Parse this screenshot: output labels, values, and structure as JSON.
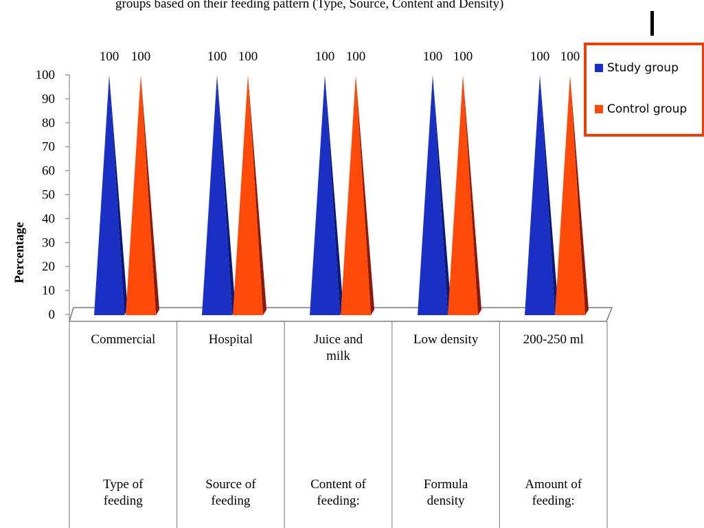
{
  "top_text": "groups based on their feeding pattern (Type, Source, Content and Density)",
  "chart_data": {
    "type": "bar",
    "ylabel": "Percentage",
    "ylim": [
      0,
      100
    ],
    "yticks": [
      0,
      10,
      20,
      30,
      40,
      50,
      60,
      70,
      80,
      90,
      100
    ],
    "categories": [
      "Commercial",
      "Hospital",
      "Juice and milk",
      "Low density",
      "200-250 ml"
    ],
    "category_lines": [
      [
        "Commercial"
      ],
      [
        "Hospital"
      ],
      [
        "Juice and",
        "milk"
      ],
      [
        "Low density"
      ],
      [
        "200-250 ml"
      ]
    ],
    "groups": [
      [
        "Type of",
        "feeding"
      ],
      [
        "Source of",
        "feeding"
      ],
      [
        "Content of",
        "feeding:"
      ],
      [
        "Formula",
        "density"
      ],
      [
        "Amount of",
        "feeding:"
      ]
    ],
    "series": [
      {
        "name": "Study group",
        "values": [
          100,
          100,
          100,
          100,
          100
        ],
        "color": "#1a2fc4",
        "shade": "#0b1a7a"
      },
      {
        "name": "Control group",
        "values": [
          100,
          100,
          100,
          100,
          100
        ],
        "color": "#ff4a0a",
        "shade": "#8a1a0a"
      }
    ],
    "legend_position": "top-right",
    "legend_border": "#e8400c",
    "grid": false
  }
}
